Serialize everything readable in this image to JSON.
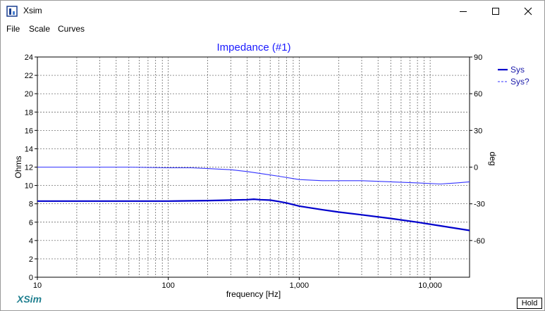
{
  "window": {
    "title": "Xsim"
  },
  "menu": {
    "items": [
      "File",
      "Scale",
      "Curves"
    ]
  },
  "hold_label": "Hold",
  "brand": "XSim",
  "colors": {
    "series": "#0000cc",
    "phase": "#3333ff",
    "title": "#1a1aff",
    "brand": "#1f7f8f"
  },
  "chart_data": {
    "type": "line",
    "title": "Impedance (#1)",
    "xlabel": "frequency [Hz]",
    "ylabel": "Ohms",
    "y2label": "deg",
    "xscale": "log",
    "xlim": [
      10,
      20000
    ],
    "ylim": [
      0,
      24
    ],
    "y2lim": [
      -90,
      90
    ],
    "xticks": [
      10,
      100,
      1000,
      10000
    ],
    "xtick_labels": [
      "10",
      "100",
      "1,000",
      "10,000"
    ],
    "yticks": [
      0,
      2,
      4,
      6,
      8,
      10,
      12,
      14,
      16,
      18,
      20,
      22,
      24
    ],
    "y2ticks": [
      -60,
      -30,
      0,
      30,
      60,
      90
    ],
    "grid": true,
    "legend_position": "top-right",
    "series": [
      {
        "name": "Sys",
        "axis": "left",
        "style": "solid",
        "x": [
          10,
          50,
          100,
          200,
          300,
          400,
          450,
          500,
          600,
          700,
          800,
          1000,
          1500,
          2000,
          3000,
          5000,
          8000,
          12000,
          20000
        ],
        "y": [
          8.3,
          8.3,
          8.3,
          8.35,
          8.4,
          8.45,
          8.5,
          8.45,
          8.4,
          8.25,
          8.1,
          7.75,
          7.35,
          7.1,
          6.8,
          6.4,
          6.0,
          5.6,
          5.1
        ]
      },
      {
        "name": "Sys?",
        "axis": "right",
        "style": "dashed",
        "x": [
          10,
          50,
          100,
          150,
          200,
          300,
          400,
          500,
          700,
          1000,
          1500,
          2000,
          3000,
          5000,
          8000,
          12000,
          16000,
          20000
        ],
        "y": [
          0,
          0,
          -0.6,
          -0.6,
          -1.2,
          -2.1,
          -3.6,
          -5.1,
          -7.5,
          -10.2,
          -11.1,
          -11.1,
          -11.1,
          -12.0,
          -12.9,
          -13.8,
          -12.9,
          -12.0
        ]
      }
    ]
  }
}
